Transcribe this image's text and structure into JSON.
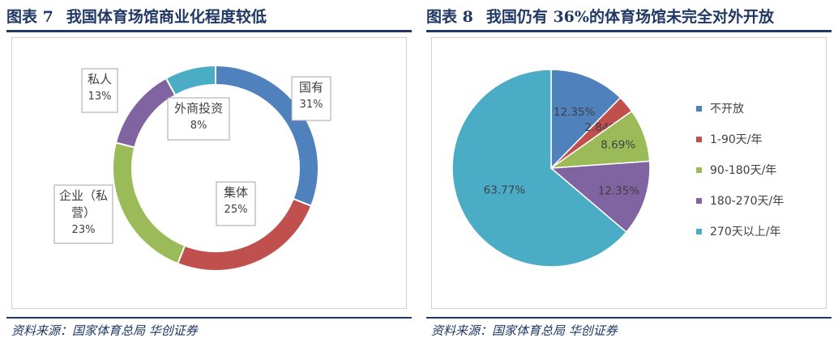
{
  "figures": [
    {
      "fig_label": "图表 7",
      "title": "我国体育场馆商业化程度较低",
      "source": "资料来源：国家体育总局 华创证券"
    },
    {
      "fig_label": "图表 8",
      "title": "我国仍有 36%的体育场馆未完全对外开放",
      "source": "资料来源：国家体育总局 华创证券"
    }
  ],
  "chart_data": [
    {
      "type": "donut",
      "title": "我国体育场馆商业化程度较低",
      "legend": "none",
      "slices": [
        {
          "label": "国有",
          "label_lines": [
            "国有"
          ],
          "value": 31,
          "display": "31%",
          "color": "#4f81bd"
        },
        {
          "label": "集体",
          "label_lines": [
            "集体"
          ],
          "value": 25,
          "display": "25%",
          "color": "#c0504d"
        },
        {
          "label": "企业（私营）",
          "label_lines": [
            "企业（私",
            "营）"
          ],
          "value": 23,
          "display": "23%",
          "color": "#9bbb59"
        },
        {
          "label": "私人",
          "label_lines": [
            "私人"
          ],
          "value": 13,
          "display": "13%",
          "color": "#8064a2"
        },
        {
          "label": "外商投资",
          "label_lines": [
            "外商投资"
          ],
          "value": 8,
          "display": "8%",
          "color": "#4bacc6"
        }
      ]
    },
    {
      "type": "pie",
      "title": "我国仍有 36%的体育场馆未完全对外开放",
      "legend": "right",
      "slices": [
        {
          "label": "不开放",
          "value": 12.35,
          "display": "12.35%",
          "color": "#4f81bd"
        },
        {
          "label": "1-90天/年",
          "value": 2.84,
          "display": "2.84%",
          "color": "#c0504d"
        },
        {
          "label": "90-180天/年",
          "value": 8.69,
          "display": "8.69%",
          "color": "#9bbb59"
        },
        {
          "label": "180-270天/年",
          "value": 12.35,
          "display": "12.35%",
          "color": "#8064a2"
        },
        {
          "label": "270天以上/年",
          "value": 63.77,
          "display": "63.77%",
          "color": "#4bacc6"
        }
      ]
    }
  ]
}
